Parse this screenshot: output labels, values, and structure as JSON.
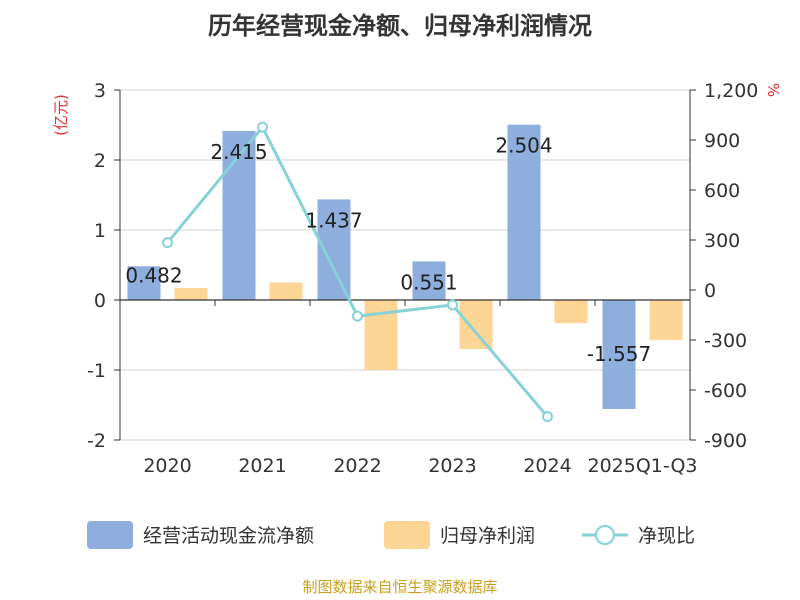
{
  "title": "历年经营现金净额、归母净利润情况",
  "source": "制图数据来自恒生聚源数据库",
  "colors": {
    "bar1": "#8eaedd",
    "bar2": "#fdd594",
    "line": "#86d2d6",
    "unit": "#e03030",
    "source": "#c8a020"
  },
  "chart_data": {
    "type": "bar",
    "categories": [
      "2020",
      "2021",
      "2022",
      "2023",
      "2024",
      "2025Q1-Q3"
    ],
    "series": [
      {
        "name": "经营活动现金流净额",
        "type": "bar",
        "axis": "left",
        "values": [
          0.482,
          2.415,
          1.437,
          0.551,
          2.504,
          -1.557
        ]
      },
      {
        "name": "归母净利润",
        "type": "bar",
        "axis": "left",
        "values": [
          0.17,
          0.25,
          -1.0,
          -0.7,
          -0.33,
          -0.57
        ]
      },
      {
        "name": "净现比",
        "type": "line",
        "axis": "right",
        "values": [
          284,
          977,
          -157,
          -90,
          -760,
          null
        ]
      }
    ],
    "data_labels": [
      "0.482",
      "2.415",
      "1.437",
      "0.551",
      "2.504",
      "-1.557"
    ],
    "y_left": {
      "label": "(亿元)",
      "ylim": [
        -2,
        3
      ],
      "ticks": [
        "-2",
        "-1",
        "0",
        "1",
        "2",
        "3"
      ]
    },
    "y_right": {
      "label": "%",
      "ylim": [
        -900,
        1200
      ],
      "ticks": [
        "-900",
        "-600",
        "-300",
        "0",
        "300",
        "600",
        "900",
        "1,200"
      ]
    },
    "grid": true,
    "legend_position": "bottom"
  }
}
